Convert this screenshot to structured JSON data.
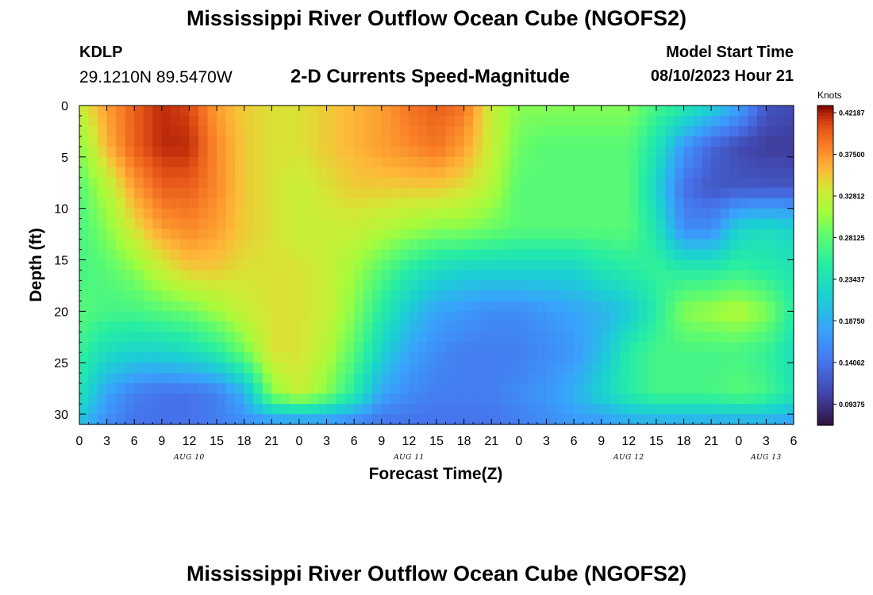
{
  "header": {
    "title": "Mississippi River Outflow Ocean Cube (NGOFS2)",
    "station": "KDLP",
    "coords": "29.1210N  89.5470W",
    "subtitle": "2-D Currents Speed-Magnitude",
    "start_label": "Model Start Time",
    "start_value": "08/10/2023 Hour 21"
  },
  "footer": {
    "title": "Mississippi River Outflow Ocean Cube (NGOFS2)"
  },
  "chart_data": {
    "type": "heatmap",
    "title": "2-D Currents Speed-Magnitude",
    "xlabel": "Forecast Time(Z)",
    "ylabel": "Depth (ft)",
    "x_hours": [
      0,
      78
    ],
    "x_tick_labels": [
      "0",
      "3",
      "6",
      "9",
      "12",
      "15",
      "18",
      "21",
      "0",
      "3",
      "6",
      "9",
      "12",
      "15",
      "18",
      "21",
      "0",
      "3",
      "6",
      "9",
      "12",
      "15",
      "18",
      "21",
      "0",
      "3",
      "6"
    ],
    "date_labels": [
      {
        "text": "AUG 10",
        "hour": 12
      },
      {
        "text": "AUG 11",
        "hour": 36
      },
      {
        "text": "AUG 12",
        "hour": 60
      },
      {
        "text": "AUG 13",
        "hour": 75
      }
    ],
    "ylim": [
      0,
      31
    ],
    "y_ticks": [
      0,
      5,
      10,
      15,
      20,
      25,
      30
    ],
    "colorbar": {
      "unit": "Knots",
      "min": 0.07,
      "max": 0.43,
      "tick_values": [
        0.42187,
        0.375,
        0.32812,
        0.28125,
        0.23437,
        0.1875,
        0.14062,
        0.09375
      ],
      "tick_labels": [
        "0.42187",
        "0.37500",
        "0.32812",
        "0.28125",
        "0.23437",
        "0.18750",
        "0.14062",
        "0.09375"
      ]
    },
    "grid_hours": [
      0,
      3,
      6,
      9,
      12,
      15,
      18,
      21,
      24,
      27,
      30,
      33,
      36,
      39,
      42,
      45,
      48,
      51,
      54,
      57,
      60,
      63,
      66,
      69,
      72,
      75,
      78
    ],
    "grid_depths": [
      0,
      4,
      8,
      12,
      16,
      20,
      24,
      28,
      31
    ],
    "speed_knots": [
      [
        0.33,
        0.37,
        0.4,
        0.42,
        0.41,
        0.37,
        0.35,
        0.34,
        0.34,
        0.35,
        0.36,
        0.37,
        0.39,
        0.4,
        0.39,
        0.33,
        0.3,
        0.3,
        0.3,
        0.3,
        0.3,
        0.27,
        0.25,
        0.22,
        0.18,
        0.12,
        0.11
      ],
      [
        0.3,
        0.36,
        0.4,
        0.42,
        0.42,
        0.38,
        0.35,
        0.34,
        0.34,
        0.35,
        0.36,
        0.37,
        0.38,
        0.39,
        0.37,
        0.33,
        0.29,
        0.28,
        0.28,
        0.28,
        0.28,
        0.24,
        0.17,
        0.13,
        0.11,
        0.1,
        0.1
      ],
      [
        0.28,
        0.32,
        0.37,
        0.4,
        0.4,
        0.38,
        0.35,
        0.34,
        0.33,
        0.34,
        0.35,
        0.35,
        0.35,
        0.35,
        0.34,
        0.32,
        0.28,
        0.28,
        0.28,
        0.28,
        0.28,
        0.22,
        0.14,
        0.12,
        0.12,
        0.12,
        0.12
      ],
      [
        0.27,
        0.3,
        0.34,
        0.37,
        0.38,
        0.37,
        0.35,
        0.34,
        0.33,
        0.33,
        0.33,
        0.32,
        0.31,
        0.3,
        0.3,
        0.29,
        0.28,
        0.28,
        0.28,
        0.28,
        0.28,
        0.24,
        0.16,
        0.16,
        0.22,
        0.23,
        0.22
      ],
      [
        0.27,
        0.28,
        0.3,
        0.33,
        0.35,
        0.35,
        0.34,
        0.34,
        0.34,
        0.33,
        0.31,
        0.28,
        0.25,
        0.23,
        0.22,
        0.22,
        0.22,
        0.22,
        0.22,
        0.24,
        0.25,
        0.26,
        0.25,
        0.25,
        0.26,
        0.25,
        0.24
      ],
      [
        0.28,
        0.27,
        0.27,
        0.28,
        0.29,
        0.31,
        0.33,
        0.34,
        0.34,
        0.33,
        0.3,
        0.25,
        0.21,
        0.18,
        0.17,
        0.16,
        0.16,
        0.17,
        0.18,
        0.19,
        0.21,
        0.25,
        0.3,
        0.31,
        0.32,
        0.3,
        0.25
      ],
      [
        0.26,
        0.23,
        0.22,
        0.22,
        0.23,
        0.25,
        0.29,
        0.34,
        0.34,
        0.32,
        0.28,
        0.22,
        0.18,
        0.16,
        0.15,
        0.15,
        0.15,
        0.16,
        0.17,
        0.2,
        0.25,
        0.27,
        0.27,
        0.27,
        0.27,
        0.26,
        0.23
      ],
      [
        0.24,
        0.18,
        0.15,
        0.14,
        0.14,
        0.15,
        0.19,
        0.3,
        0.33,
        0.3,
        0.25,
        0.18,
        0.16,
        0.15,
        0.15,
        0.15,
        0.16,
        0.17,
        0.19,
        0.22,
        0.25,
        0.27,
        0.27,
        0.27,
        0.28,
        0.27,
        0.24
      ],
      [
        0.2,
        0.16,
        0.14,
        0.14,
        0.14,
        0.15,
        0.16,
        0.16,
        0.16,
        0.16,
        0.15,
        0.14,
        0.14,
        0.14,
        0.14,
        0.14,
        0.15,
        0.16,
        0.17,
        0.17,
        0.18,
        0.18,
        0.18,
        0.18,
        0.18,
        0.18,
        0.17
      ]
    ]
  }
}
